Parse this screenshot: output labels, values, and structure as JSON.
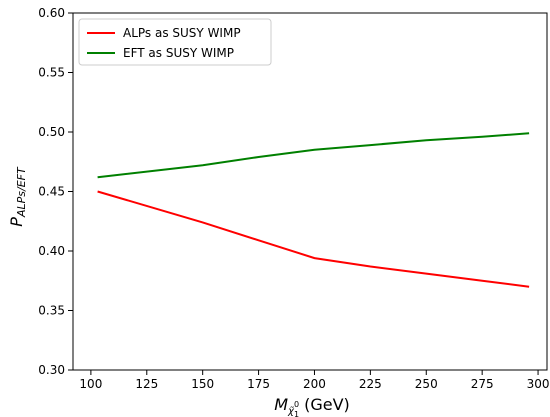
{
  "chart_data": {
    "type": "line",
    "xlabel": {
      "main": "M",
      "sub": "χ̃",
      "sub_sup": "0",
      "sub_sub": "1",
      "unit": "(GeV)"
    },
    "ylabel": {
      "main": "P",
      "sub": "ALPs/EFT"
    },
    "xlim": [
      92,
      304
    ],
    "ylim": [
      0.3,
      0.6
    ],
    "xticks": [
      "100",
      "125",
      "150",
      "175",
      "200",
      "225",
      "250",
      "275",
      "300"
    ],
    "yticks": [
      "0.30",
      "0.35",
      "0.40",
      "0.45",
      "0.50",
      "0.55",
      "0.60"
    ],
    "grid": false,
    "legend_position": "top-left",
    "series": [
      {
        "name": "ALPs as SUSY WIMP",
        "color": "#ff0000",
        "x": [
          103,
          150,
          175,
          200,
          225,
          250,
          275,
          296
        ],
        "y": [
          0.45,
          0.424,
          0.409,
          0.394,
          0.387,
          0.381,
          0.375,
          0.37
        ]
      },
      {
        "name": "EFT as SUSY WIMP",
        "color": "#008000",
        "x": [
          103,
          150,
          175,
          200,
          225,
          250,
          275,
          296
        ],
        "y": [
          0.462,
          0.472,
          0.479,
          0.485,
          0.489,
          0.493,
          0.496,
          0.499
        ]
      }
    ]
  }
}
